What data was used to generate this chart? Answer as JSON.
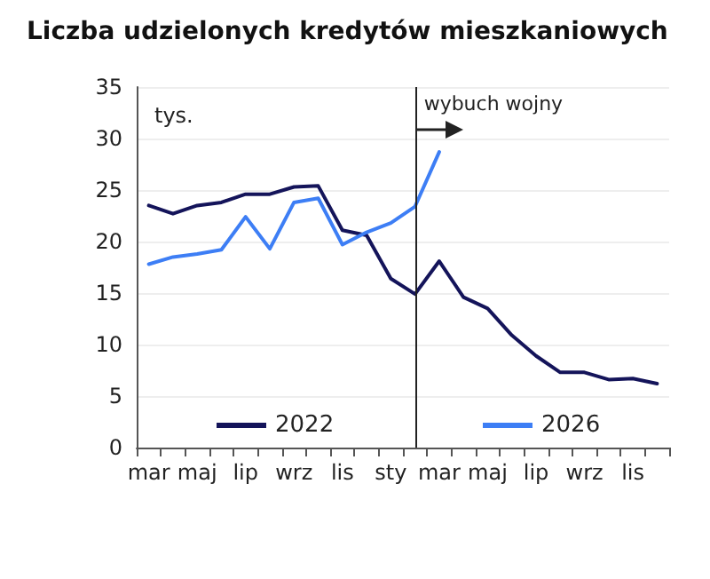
{
  "chart_data": {
    "type": "line",
    "title": "Liczba udzielonych kredytów mieszkaniowych",
    "ylabel": "tys.",
    "categories": [
      "mar",
      null,
      "maj",
      null,
      "lip",
      null,
      "wrz",
      null,
      "lis",
      null,
      "sty",
      null,
      "mar",
      null,
      "maj",
      null,
      "lip",
      null,
      "wrz",
      null,
      "lis",
      null
    ],
    "series": [
      {
        "name": "2022",
        "color": "#14145a",
        "values": [
          23.5,
          22.7,
          23.5,
          23.8,
          24.6,
          24.6,
          25.3,
          25.4,
          21.1,
          20.6,
          16.4,
          14.9,
          18.1,
          14.6,
          13.5,
          10.9,
          8.9,
          7.3,
          7.3,
          6.6,
          6.7,
          6.2
        ]
      },
      {
        "name": "2026",
        "color": "#3d7ef5",
        "values": [
          17.8,
          18.5,
          18.8,
          19.2,
          22.4,
          19.3,
          23.8,
          24.2,
          19.7,
          20.9,
          21.8,
          23.4,
          28.7,
          null,
          null,
          null,
          null,
          null,
          null,
          null,
          null,
          null
        ]
      }
    ],
    "ylim": [
      0,
      35
    ],
    "yticks": [
      0,
      5,
      10,
      15,
      20,
      25,
      30,
      35
    ],
    "grid": "y",
    "legend": "bottom",
    "marker": "none",
    "line_style": "solid",
    "annotations": [
      "wybuch wojny"
    ]
  }
}
